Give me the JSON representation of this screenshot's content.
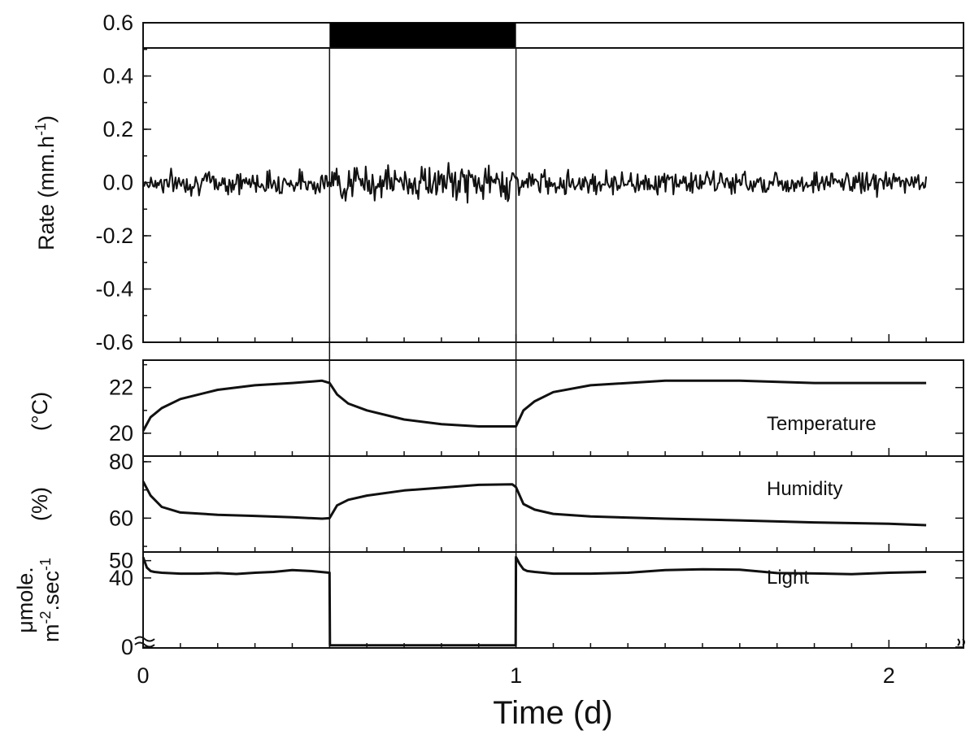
{
  "chart_data": [
    {
      "type": "line",
      "panel": "rate",
      "ylabel": "Rate (mm.h-1)",
      "ylabel_main": "Rate (mm.h",
      "ylabel_sup": "-1",
      "ylabel_close": ")",
      "ylim": [
        -0.6,
        0.6
      ],
      "yticks": [
        -0.6,
        -0.4,
        -0.2,
        0.0,
        0.2,
        0.4,
        0.6
      ],
      "ytick_labels": [
        "-0.6",
        "-0.4",
        "-0.2",
        "0.0",
        "0.2",
        "0.4",
        "0.6"
      ],
      "xlim": [
        0,
        2.2
      ],
      "dark_period": [
        0.5,
        1.0
      ],
      "x_range": [
        0,
        2.1
      ],
      "mean": 0.0,
      "noise_amplitude": [
        0.03,
        0.045,
        0.03
      ]
    },
    {
      "type": "line",
      "panel": "temperature",
      "series_label": "Temperature",
      "ylabel": "(°C)",
      "ylim": [
        19,
        23.2
      ],
      "yticks": [
        20,
        22
      ],
      "ytick_labels": [
        "20",
        "22"
      ],
      "x": [
        0,
        0.02,
        0.05,
        0.1,
        0.2,
        0.3,
        0.4,
        0.48,
        0.5,
        0.52,
        0.55,
        0.6,
        0.7,
        0.8,
        0.9,
        0.99,
        1.0,
        1.02,
        1.05,
        1.1,
        1.2,
        1.4,
        1.6,
        1.8,
        2.0,
        2.1
      ],
      "y": [
        20.1,
        20.7,
        21.1,
        21.5,
        21.9,
        22.1,
        22.2,
        22.3,
        22.2,
        21.7,
        21.3,
        21.0,
        20.6,
        20.4,
        20.3,
        20.3,
        20.3,
        21.0,
        21.4,
        21.8,
        22.1,
        22.3,
        22.3,
        22.2,
        22.2,
        22.2
      ]
    },
    {
      "type": "line",
      "panel": "humidity",
      "series_label": "Humidity",
      "ylabel": "(%)",
      "ylim": [
        48,
        82
      ],
      "yticks": [
        60,
        80
      ],
      "ytick_labels": [
        "60",
        "80"
      ],
      "x": [
        0,
        0.02,
        0.05,
        0.1,
        0.2,
        0.3,
        0.4,
        0.48,
        0.5,
        0.52,
        0.55,
        0.6,
        0.7,
        0.8,
        0.9,
        0.99,
        1.0,
        1.02,
        1.05,
        1.1,
        1.2,
        1.4,
        1.6,
        1.8,
        2.0,
        2.1
      ],
      "y": [
        73,
        68,
        64,
        62,
        61.2,
        60.8,
        60.3,
        59.8,
        60,
        64.5,
        66.5,
        68,
        69.8,
        70.8,
        71.8,
        72,
        71,
        65,
        63,
        61.5,
        60.6,
        59.8,
        59.2,
        58.5,
        58,
        57.5
      ]
    },
    {
      "type": "line",
      "panel": "light",
      "series_label": "Light",
      "ylabel_line1": "μmole.",
      "ylabel_line2_main": "m",
      "ylabel_line2_sup1": "-2",
      "ylabel_line2_mid": ".sec",
      "ylabel_line2_sup2": "-1",
      "ylim": [
        -0.5,
        55
      ],
      "axis_break": true,
      "yticks": [
        0,
        40,
        50
      ],
      "ytick_labels": [
        "0",
        "40",
        "50"
      ],
      "x": [
        0,
        0.01,
        0.02,
        0.03,
        0.05,
        0.1,
        0.15,
        0.2,
        0.25,
        0.3,
        0.35,
        0.4,
        0.45,
        0.5,
        0.501,
        0.6,
        0.8,
        0.999,
        1.0,
        1.01,
        1.02,
        1.03,
        1.05,
        1.1,
        1.2,
        1.3,
        1.4,
        1.5,
        1.6,
        1.7,
        1.8,
        1.9,
        2.0,
        2.1
      ],
      "y": [
        52,
        46,
        44,
        43.5,
        43,
        42.5,
        42.5,
        42.8,
        42.3,
        43,
        43.5,
        44.5,
        44,
        43,
        1,
        1,
        1,
        1,
        52,
        48,
        45,
        44,
        43.5,
        42.5,
        42.5,
        43,
        44.5,
        45,
        44.8,
        42.8,
        42.6,
        42.2,
        43,
        43.5
      ]
    }
  ],
  "x_axis": {
    "label": "Time (d)",
    "ticks": [
      0,
      1,
      2
    ],
    "tick_labels": [
      "0",
      "1",
      "2"
    ],
    "xlim": [
      0,
      2.2
    ]
  },
  "legend_labels": {
    "temperature": "Temperature",
    "humidity": "Humidity",
    "light": "Light"
  }
}
